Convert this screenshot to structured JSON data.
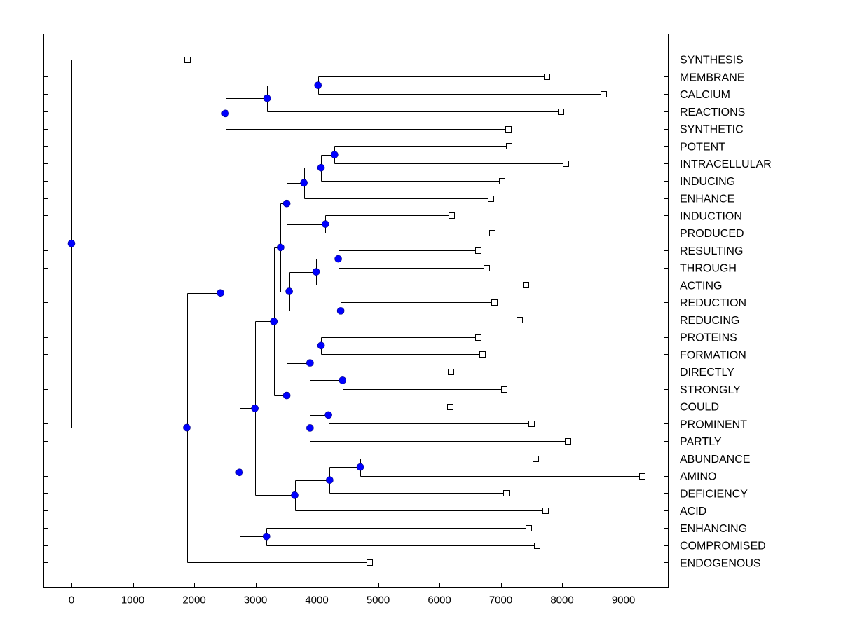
{
  "chart_data": {
    "type": "dendrogram",
    "title": "",
    "xlabel": "",
    "ylabel": "",
    "xlim": [
      -450,
      9600
    ],
    "xticks": [
      0,
      1000,
      2000,
      3000,
      4000,
      5000,
      6000,
      7000,
      8000,
      9000
    ],
    "tick_labels": [
      "0",
      "1000",
      "2000",
      "3000",
      "4000",
      "5000",
      "6000",
      "7000",
      "8000",
      "9000"
    ],
    "colors": {
      "node": "#0000ff",
      "line": "#000000",
      "leaf_fill": "#ffffff"
    },
    "leaves": [
      {
        "name": "SYNTHESIS",
        "x": 1880
      },
      {
        "name": "MEMBRANE",
        "x": 7750
      },
      {
        "name": "CALCIUM",
        "x": 8670
      },
      {
        "name": "REACTIONS",
        "x": 7980
      },
      {
        "name": "SYNTHETIC",
        "x": 7120
      },
      {
        "name": "POTENT",
        "x": 7130
      },
      {
        "name": "INTRACELLULAR",
        "x": 8060
      },
      {
        "name": "INDUCING",
        "x": 7020
      },
      {
        "name": "ENHANCE",
        "x": 6830
      },
      {
        "name": "INDUCTION",
        "x": 6190
      },
      {
        "name": "PRODUCED",
        "x": 6860
      },
      {
        "name": "RESULTING",
        "x": 6630
      },
      {
        "name": "THROUGH",
        "x": 6760
      },
      {
        "name": "ACTING",
        "x": 7400
      },
      {
        "name": "REDUCTION",
        "x": 6890
      },
      {
        "name": "REDUCING",
        "x": 7300
      },
      {
        "name": "PROTEINS",
        "x": 6630
      },
      {
        "name": "FORMATION",
        "x": 6700
      },
      {
        "name": "DIRECTLY",
        "x": 6180
      },
      {
        "name": "STRONGLY",
        "x": 7050
      },
      {
        "name": "COULD",
        "x": 6170
      },
      {
        "name": "PROMINENT",
        "x": 7500
      },
      {
        "name": "PARTLY",
        "x": 8090
      },
      {
        "name": "ABUNDANCE",
        "x": 7570
      },
      {
        "name": "AMINO",
        "x": 9300
      },
      {
        "name": "DEFICIENCY",
        "x": 7080
      },
      {
        "name": "ACID",
        "x": 7730
      },
      {
        "name": "ENHANCING",
        "x": 7450
      },
      {
        "name": "COMPROMISED",
        "x": 7590
      },
      {
        "name": "ENDOGENOUS",
        "x": 4860
      }
    ],
    "nodes": [
      {
        "id": "n1",
        "x": 4020,
        "children": [
          "L1",
          "L2"
        ]
      },
      {
        "id": "n2",
        "x": 3190,
        "children": [
          "n1",
          "L3"
        ]
      },
      {
        "id": "n3",
        "x": 2510,
        "children": [
          "n2",
          "L4"
        ]
      },
      {
        "id": "n4",
        "x": 4290,
        "children": [
          "L5",
          "L6"
        ]
      },
      {
        "id": "n5",
        "x": 4070,
        "children": [
          "n4",
          "L7"
        ]
      },
      {
        "id": "n6",
        "x": 3790,
        "children": [
          "n5",
          "L8"
        ]
      },
      {
        "id": "n7",
        "x": 4140,
        "children": [
          "L9",
          "L10"
        ]
      },
      {
        "id": "n8",
        "x": 3510,
        "children": [
          "n6",
          "n7"
        ]
      },
      {
        "id": "n9",
        "x": 4350,
        "children": [
          "L11",
          "L12"
        ]
      },
      {
        "id": "n10",
        "x": 3990,
        "children": [
          "n9",
          "L13"
        ]
      },
      {
        "id": "n11",
        "x": 4390,
        "children": [
          "L14",
          "L15"
        ]
      },
      {
        "id": "n12",
        "x": 3550,
        "children": [
          "n10",
          "n11"
        ]
      },
      {
        "id": "n13",
        "x": 3410,
        "children": [
          "n8",
          "n12"
        ]
      },
      {
        "id": "n14",
        "x": 4070,
        "children": [
          "L16",
          "L17"
        ]
      },
      {
        "id": "n15",
        "x": 4420,
        "children": [
          "L18",
          "L19"
        ]
      },
      {
        "id": "n16",
        "x": 3890,
        "children": [
          "n14",
          "n15"
        ]
      },
      {
        "id": "n17",
        "x": 4190,
        "children": [
          "L20",
          "L21"
        ]
      },
      {
        "id": "n18",
        "x": 3890,
        "children": [
          "n17",
          "L22"
        ]
      },
      {
        "id": "n19",
        "x": 3510,
        "children": [
          "n16",
          "n18"
        ]
      },
      {
        "id": "n20",
        "x": 3300,
        "children": [
          "n13",
          "n19"
        ]
      },
      {
        "id": "n21",
        "x": 4710,
        "children": [
          "L23",
          "L24"
        ]
      },
      {
        "id": "n22",
        "x": 4210,
        "children": [
          "n21",
          "L25"
        ]
      },
      {
        "id": "n23",
        "x": 3640,
        "children": [
          "n22",
          "L26"
        ]
      },
      {
        "id": "n24",
        "x": 2990,
        "children": [
          "n20",
          "n23"
        ]
      },
      {
        "id": "n25",
        "x": 3180,
        "children": [
          "L27",
          "L28"
        ]
      },
      {
        "id": "n26",
        "x": 2740,
        "children": [
          "n24",
          "n25"
        ]
      },
      {
        "id": "n27",
        "x": 2430,
        "children": [
          "n3",
          "n26"
        ]
      },
      {
        "id": "n28",
        "x": 1880,
        "children": [
          "n27",
          "L29"
        ]
      },
      {
        "id": "n29",
        "x": 0,
        "children": [
          "L0",
          "n28"
        ]
      }
    ]
  }
}
